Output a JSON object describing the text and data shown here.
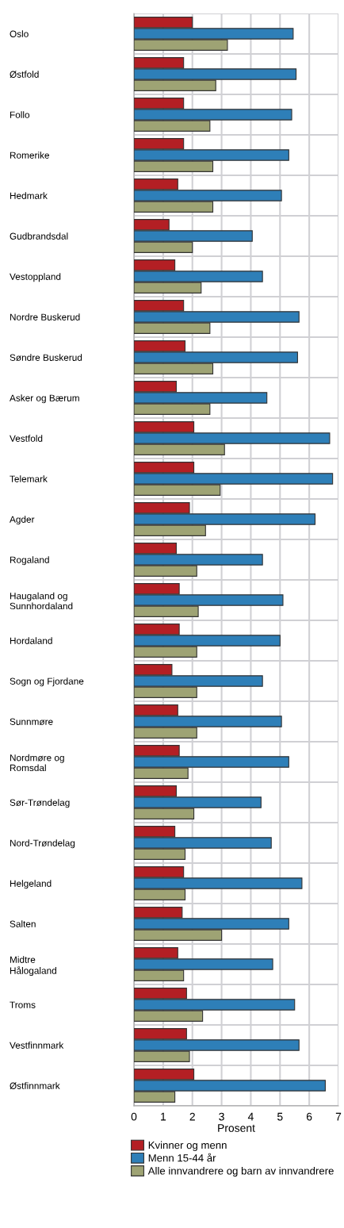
{
  "chart_data": {
    "type": "bar",
    "orientation": "horizontal",
    "xlabel": "Prosent",
    "categories": [
      "Oslo",
      "Østfold",
      "Follo",
      "Romerike",
      "Hedmark",
      "Gudbrandsdal",
      "Vestoppland",
      "Nordre Buskerud",
      "Søndre Buskerud",
      "Asker og Bærum",
      "Vestfold",
      "Telemark",
      "Agder",
      "Rogaland",
      "Haugaland og\nSunnhordaland",
      "Hordaland",
      "Sogn og Fjordane",
      "Sunnmøre",
      "Nordmøre og\nRomsdal",
      "Sør-Trøndelag",
      "Nord-Trøndelag",
      "Helgeland",
      "Salten",
      "Midtre\nHålogaland",
      "Troms",
      "Vestfinnmark",
      "Østfinnmark"
    ],
    "series": [
      {
        "name": "Kvinner og menn",
        "color": "#b31f24",
        "values": [
          2.0,
          1.7,
          1.7,
          1.7,
          1.5,
          1.2,
          1.4,
          1.7,
          1.75,
          1.45,
          2.05,
          2.05,
          1.9,
          1.45,
          1.55,
          1.55,
          1.3,
          1.5,
          1.55,
          1.45,
          1.4,
          1.7,
          1.65,
          1.5,
          1.8,
          1.8,
          2.05
        ]
      },
      {
        "name": "Menn 15-44 år",
        "color": "#2e7fb8",
        "values": [
          5.45,
          5.55,
          5.4,
          5.3,
          5.05,
          4.05,
          4.4,
          5.65,
          5.6,
          4.55,
          6.7,
          6.8,
          6.2,
          4.4,
          5.1,
          5.0,
          4.4,
          5.05,
          5.3,
          4.35,
          4.7,
          5.75,
          5.3,
          4.75,
          5.5,
          5.65,
          6.55
        ]
      },
      {
        "name": "Alle innvandrere og barn av innvandrere",
        "color": "#9ea374",
        "values": [
          3.2,
          2.8,
          2.6,
          2.7,
          2.7,
          2.0,
          2.3,
          2.6,
          2.7,
          2.6,
          3.1,
          2.95,
          2.45,
          2.15,
          2.2,
          2.15,
          2.15,
          2.15,
          1.85,
          2.05,
          1.75,
          1.75,
          3.0,
          1.7,
          2.35,
          1.9,
          1.4
        ]
      }
    ],
    "xlim": [
      0,
      7
    ],
    "xticks": [
      0,
      1,
      2,
      3,
      4,
      5,
      6,
      7
    ],
    "grid": true,
    "legend": "bottom"
  }
}
